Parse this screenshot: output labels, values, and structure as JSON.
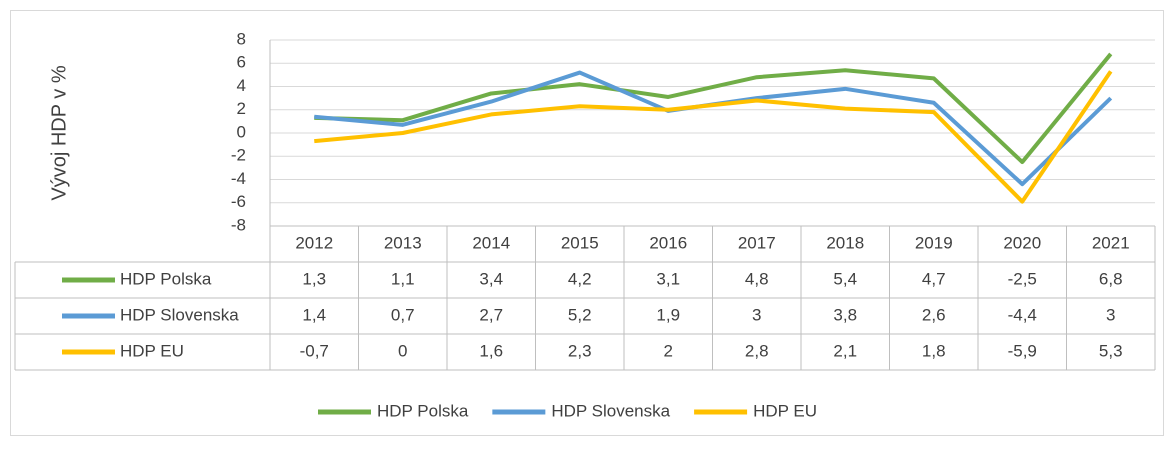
{
  "chart_data": {
    "type": "line",
    "y_label": "Vývoj HDP v %",
    "categories": [
      "2012",
      "2013",
      "2014",
      "2015",
      "2016",
      "2017",
      "2018",
      "2019",
      "2020",
      "2021"
    ],
    "series": [
      {
        "name": "HDP Polska",
        "color": "#70ad47",
        "values": [
          1.3,
          1.1,
          3.4,
          4.2,
          3.1,
          4.8,
          5.4,
          4.7,
          -2.5,
          6.8
        ],
        "value_labels": [
          "1,3",
          "1,1",
          "3,4",
          "4,2",
          "3,1",
          "4,8",
          "5,4",
          "4,7",
          "-2,5",
          "6,8"
        ]
      },
      {
        "name": "HDP Slovenska",
        "color": "#5b9bd5",
        "values": [
          1.4,
          0.7,
          2.7,
          5.2,
          1.9,
          3,
          3.8,
          2.6,
          -4.4,
          3
        ],
        "value_labels": [
          "1,4",
          "0,7",
          "2,7",
          "5,2",
          "1,9",
          "3",
          "3,8",
          "2,6",
          "-4,4",
          "3"
        ]
      },
      {
        "name": "HDP EU",
        "color": "#ffc000",
        "values": [
          -0.7,
          0,
          1.6,
          2.3,
          2,
          2.8,
          2.1,
          1.8,
          -5.9,
          5.3
        ],
        "value_labels": [
          "-0,7",
          "0",
          "1,6",
          "2,3",
          "2",
          "2,8",
          "2,1",
          "1,8",
          "-5,9",
          "5,3"
        ]
      }
    ],
    "ylim": [
      -8,
      8
    ],
    "yticks": [
      -8,
      -6,
      -4,
      -2,
      0,
      2,
      4,
      6,
      8
    ],
    "grid": true,
    "legend": "bottom"
  }
}
